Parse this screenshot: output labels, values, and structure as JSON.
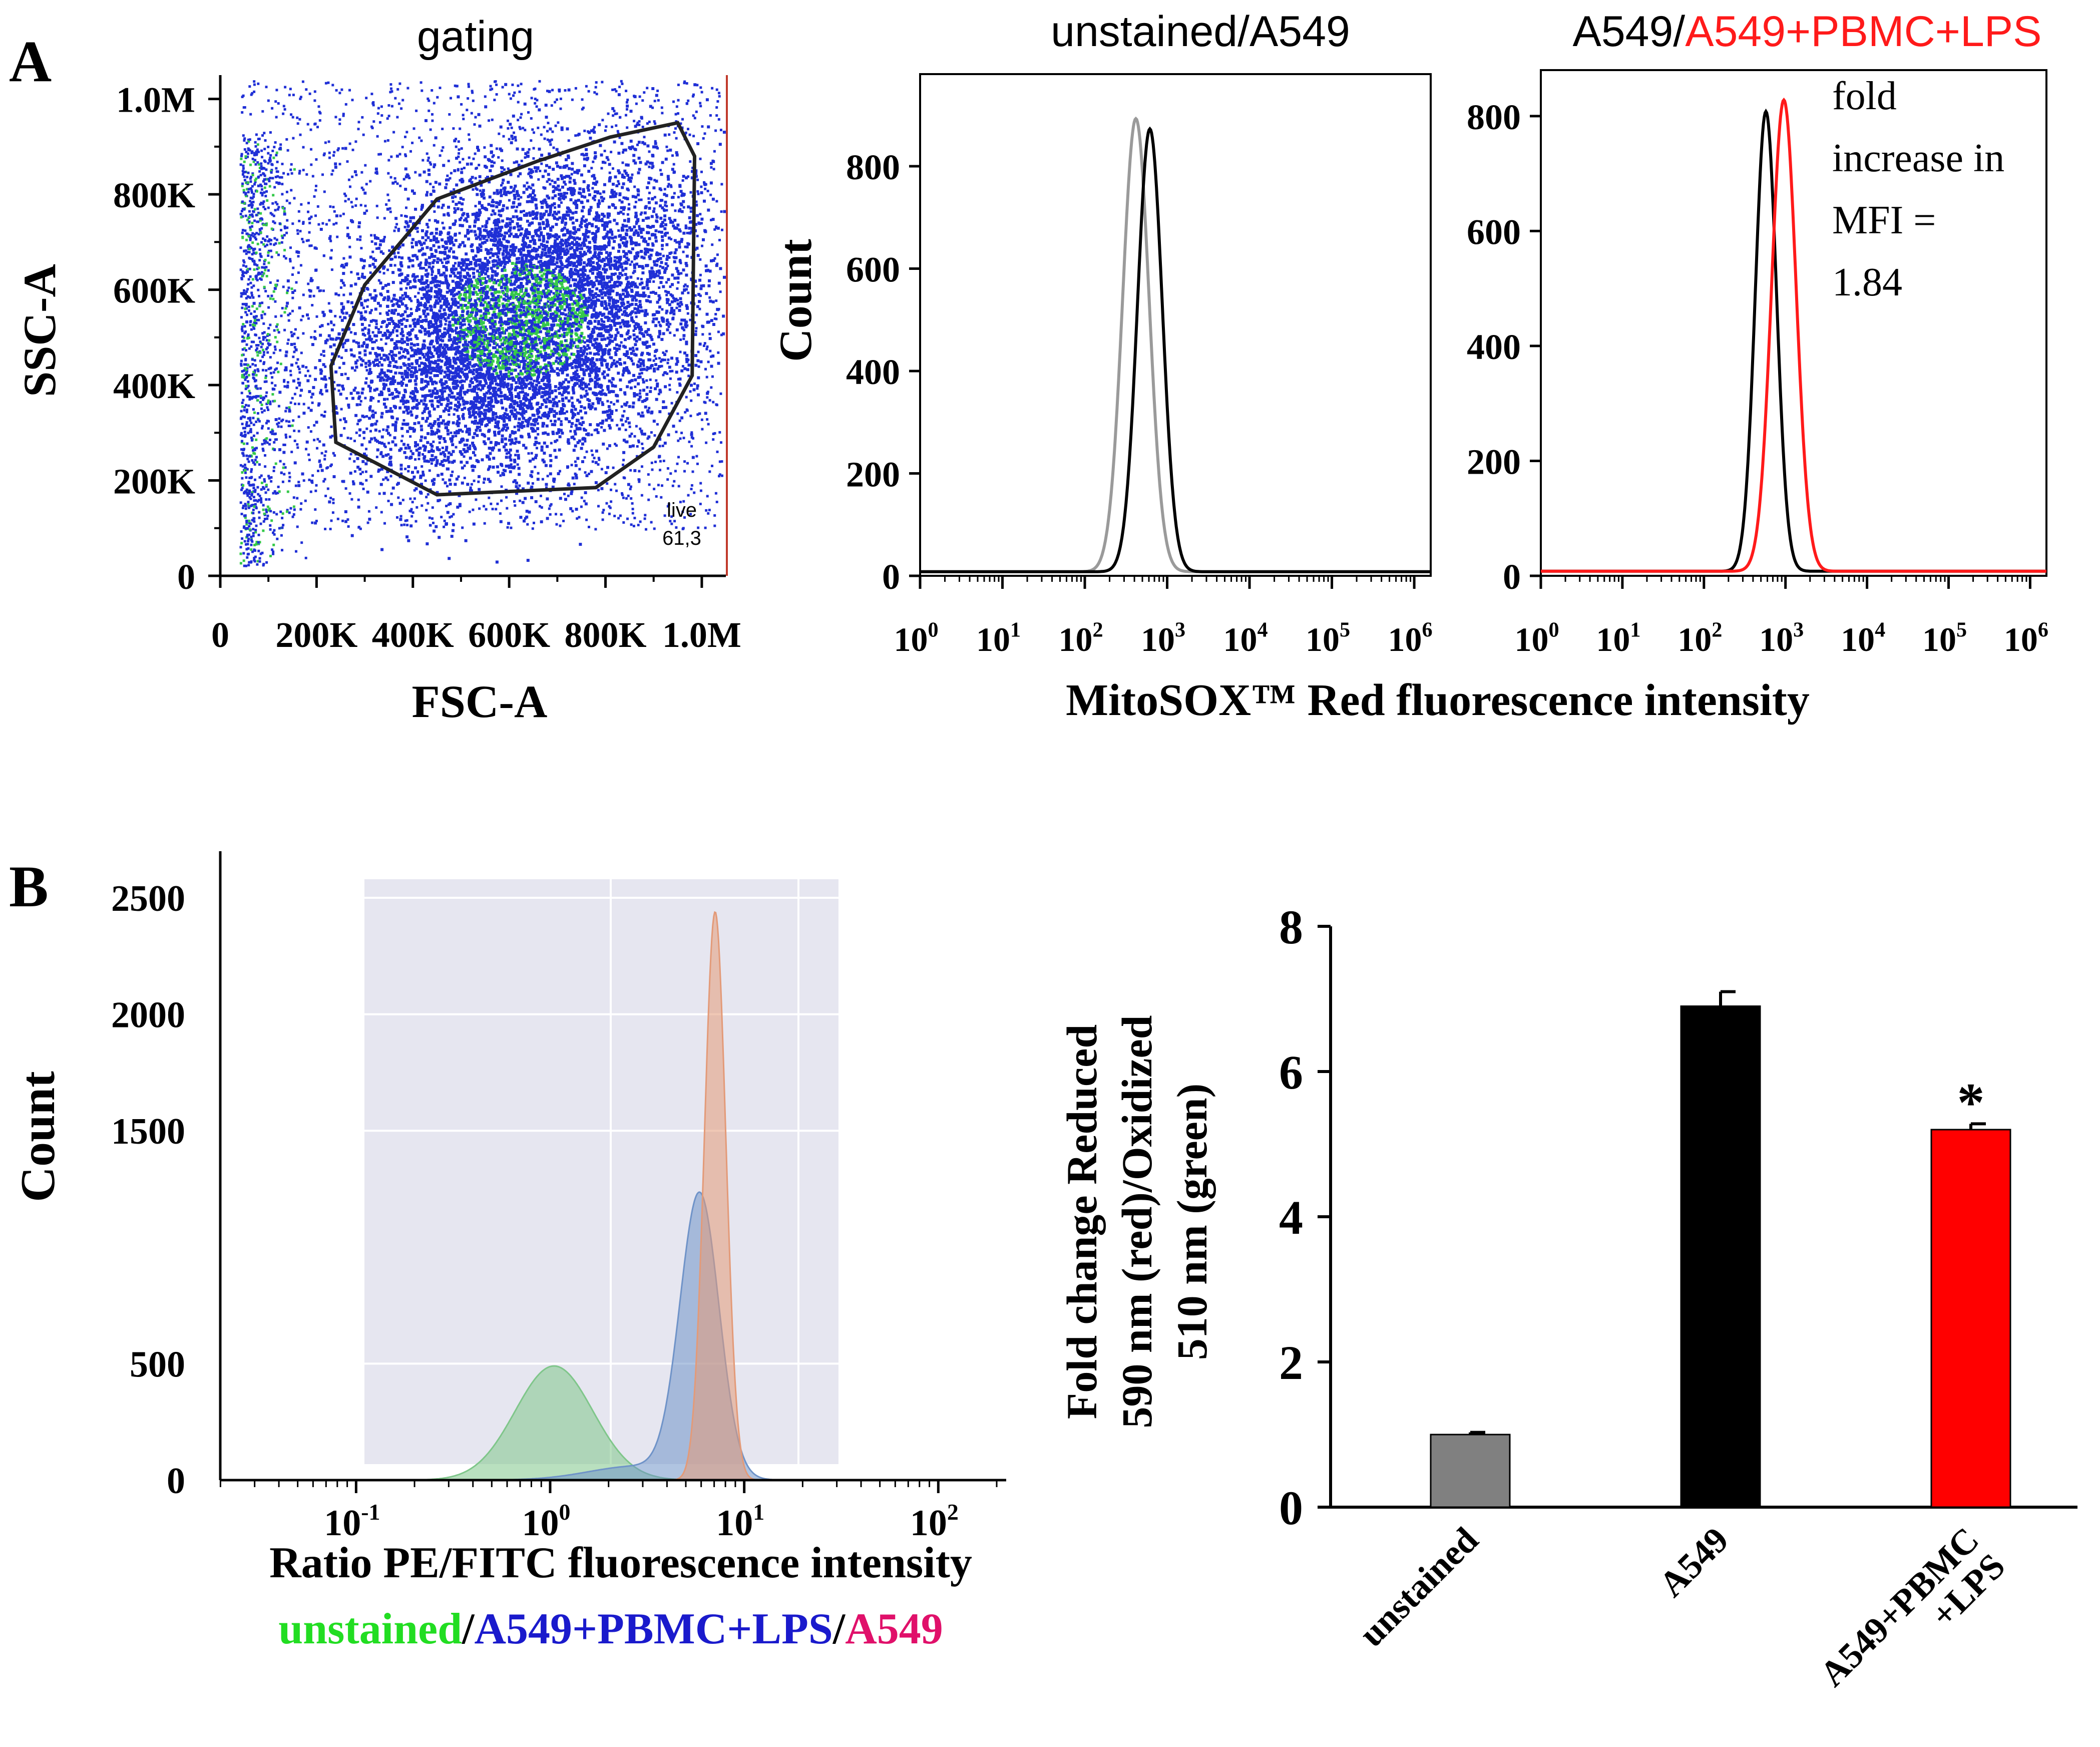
{
  "panels": {
    "a_label": "A",
    "b_label": "B"
  },
  "colors": {
    "axis": "#000000",
    "dot_blue": "#1f2fd6",
    "dot_green": "#35c94a",
    "gate": "#222222",
    "unstained_gray": "#9a9a9a",
    "a549_black": "#000000",
    "lps_red": "#ff1a1a",
    "hist_bg": "#e6e6f0",
    "fill_green": "#7fc68a",
    "fill_blue": "#6f93c8",
    "fill_orange": "#e39a78",
    "bar_gray": "#808080",
    "bar_black": "#000000",
    "bar_red": "#ff0000",
    "legend_green": "#22dd22",
    "legend_blue": "#1a1acc",
    "legend_magenta": "#e0106a"
  },
  "chart_data": [
    {
      "id": "gating",
      "type": "scatter",
      "title": "gating",
      "xlabel": "FSC-A",
      "ylabel": "SSC-A",
      "xlim": [
        0,
        1050000
      ],
      "ylim": [
        0,
        1050000
      ],
      "xticks": [
        "0",
        "200K",
        "400K",
        "600K",
        "800K",
        "1.0M"
      ],
      "xtick_values": [
        0,
        200000,
        400000,
        600000,
        800000,
        1000000
      ],
      "yticks": [
        "0",
        "200K",
        "400K",
        "600K",
        "800K",
        "1.0M"
      ],
      "ytick_values": [
        0,
        200000,
        400000,
        600000,
        800000,
        1000000
      ],
      "gate_label": "live",
      "gate_value": "61,3",
      "gate_polygon": [
        [
          240000,
          280000
        ],
        [
          230000,
          440000
        ],
        [
          300000,
          610000
        ],
        [
          450000,
          790000
        ],
        [
          660000,
          870000
        ],
        [
          810000,
          920000
        ],
        [
          950000,
          950000
        ],
        [
          985000,
          880000
        ],
        [
          980000,
          420000
        ],
        [
          900000,
          270000
        ],
        [
          780000,
          185000
        ],
        [
          450000,
          170000
        ]
      ],
      "population_center": [
        620000,
        540000
      ]
    },
    {
      "id": "mitosox_unstained",
      "type": "line",
      "title_parts": [
        "unstained/A549"
      ],
      "ylabel": "Count",
      "xscale": "log",
      "xlim_exp": [
        0,
        6.2
      ],
      "ylim": [
        0,
        980
      ],
      "yticks": [
        "0",
        "200",
        "400",
        "600",
        "800"
      ],
      "ytick_values": [
        0,
        200,
        400,
        600,
        800
      ],
      "xtick_exponents": [
        "0",
        "1",
        "2",
        "3",
        "4",
        "5",
        "6"
      ],
      "series": [
        {
          "name": "unstained",
          "color": "#9a9a9a",
          "peak_log": 2.62,
          "peak": 885,
          "width": 0.16
        },
        {
          "name": "A549",
          "color": "#000000",
          "peak_log": 2.79,
          "peak": 865,
          "width": 0.15
        }
      ]
    },
    {
      "id": "mitosox_lps",
      "type": "line",
      "title_parts": [
        "A549/",
        "A549+PBMC+LPS"
      ],
      "xscale": "log",
      "xlim_exp": [
        0,
        6.2
      ],
      "ylim": [
        0,
        880
      ],
      "yticks": [
        "0",
        "200",
        "400",
        "600",
        "800"
      ],
      "ytick_values": [
        0,
        200,
        400,
        600,
        800
      ],
      "xtick_exponents": [
        "0",
        "1",
        "2",
        "3",
        "4",
        "5",
        "6"
      ],
      "annotation": [
        "fold",
        "increase in",
        "MFI =",
        "1.84"
      ],
      "series": [
        {
          "name": "A549",
          "color": "#000000",
          "peak_log": 2.76,
          "peak": 800,
          "width": 0.13
        },
        {
          "name": "A549+PBMC+LPS",
          "color": "#ff1a1a",
          "peak_log": 2.98,
          "peak": 820,
          "width": 0.15
        }
      ]
    },
    {
      "id": "ratio_histogram",
      "type": "area",
      "ylabel": "Count",
      "xlabel": "Ratio PE/FITC fluorescence intensity",
      "xscale": "log",
      "xlim_exp": [
        -1.7,
        2.35
      ],
      "ylim": [
        0,
        2700
      ],
      "yticks": [
        "0",
        "500",
        "1500",
        "2000",
        "2500"
      ],
      "ytick_values": [
        0,
        500,
        1500,
        2000,
        2500
      ],
      "xtick_exponents": [
        "-1",
        "0",
        "1",
        "2"
      ],
      "xtick_values": [
        -1,
        0,
        1,
        2
      ],
      "legend_parts": [
        "unstained",
        "/",
        "A549+PBMC+LPS",
        "/",
        "A549"
      ],
      "series": [
        {
          "name": "unstained",
          "color": "#7fc68a",
          "peak_log": 0.02,
          "peak": 490,
          "width": 0.2
        },
        {
          "name": "A549+PBMC+LPS",
          "color": "#6f93c8",
          "peak_log": 0.77,
          "peak": 1210,
          "width": 0.1
        },
        {
          "name": "A549",
          "color": "#e39a78",
          "peak_log": 0.85,
          "peak": 2440,
          "width": 0.055
        }
      ]
    },
    {
      "id": "fold_change_bar",
      "type": "bar",
      "ylabel_lines": [
        "Fold change Reduced",
        "590 nm (red)/Oxidized",
        "510 nm (green)"
      ],
      "ylim": [
        0,
        8
      ],
      "yticks": [
        "0",
        "2",
        "4",
        "6",
        "8"
      ],
      "ytick_values": [
        0,
        2,
        4,
        6,
        8
      ],
      "categories": [
        "unstained",
        "A549",
        "A549+PBMC+LPS"
      ],
      "category_label_lines": [
        [
          "unstained"
        ],
        [
          "A549"
        ],
        [
          "A549+PBMC",
          "+LPS"
        ]
      ],
      "values": [
        1.0,
        6.9,
        5.2
      ],
      "errors": [
        0.03,
        0.2,
        0.08
      ],
      "colors": [
        "#808080",
        "#000000",
        "#ff0000"
      ],
      "significance": [
        "",
        "",
        "*"
      ]
    }
  ],
  "xaxis_common": {
    "mitosox_label": "MitoSOX™ Red fluorescence intensity"
  }
}
